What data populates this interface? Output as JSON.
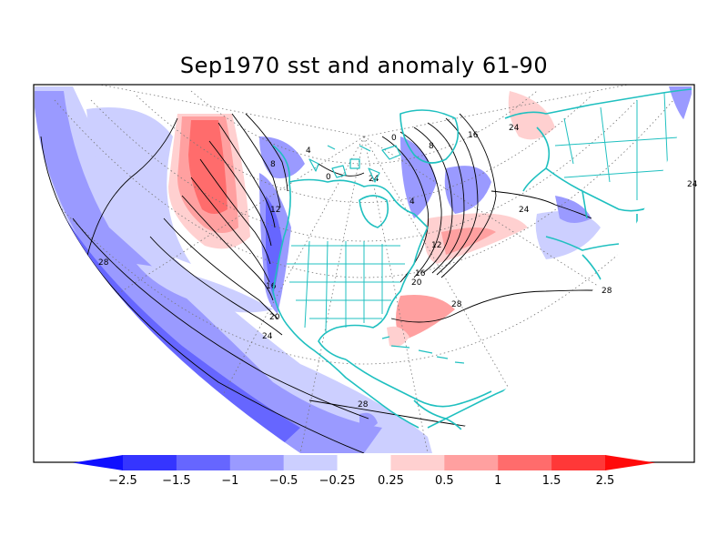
{
  "title": "Sep1970 sst and anomaly 61-90",
  "colorbar": {
    "levels": [
      "-2.5",
      "-1.5",
      "-1",
      "-0.5",
      "-0.25",
      "0.25",
      "0.5",
      "1",
      "1.5",
      "2.5"
    ],
    "colors": [
      "#1010ff",
      "#3535ff",
      "#6666ff",
      "#9a9aff",
      "#cccfff",
      "#ffffff",
      "#ffd0d0",
      "#ffa0a0",
      "#ff6c6c",
      "#ff3838",
      "#ff0a0a"
    ]
  },
  "contour_labels": [
    "28",
    "12",
    "16",
    "20",
    "24",
    "8",
    "4",
    "0",
    "12",
    "16",
    "20",
    "24",
    "28",
    "28",
    "24",
    "28",
    "24",
    "0",
    "4",
    "8",
    "16",
    "24"
  ],
  "colors": {
    "coastline": "#20c0c0",
    "graticule": "#777777",
    "contour": "#000000",
    "frame": "#000000"
  }
}
